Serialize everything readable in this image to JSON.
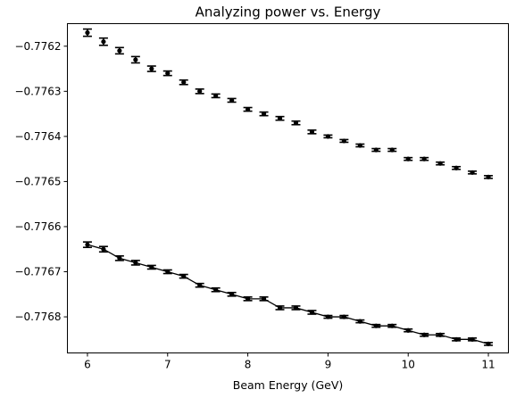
{
  "chart_data": {
    "type": "scatter",
    "title": "Analyzing power vs. Energy",
    "xlabel": "Beam Energy (GeV)",
    "ylabel": "",
    "xlim": [
      5.75,
      11.25
    ],
    "ylim": [
      -0.77688,
      -0.77615
    ],
    "xticks": [
      6,
      7,
      8,
      9,
      10,
      11
    ],
    "xtick_labels": [
      "6",
      "7",
      "8",
      "9",
      "10",
      "11"
    ],
    "yticks": [
      -0.7762,
      -0.7763,
      -0.7764,
      -0.7765,
      -0.7766,
      -0.7767,
      -0.7768
    ],
    "ytick_labels": [
      "−0.7762",
      "−0.7763",
      "−0.7764",
      "−0.7765",
      "−0.7766",
      "−0.7767",
      "−0.7768"
    ],
    "grid": false,
    "legend": "none",
    "marker_color": "#000000",
    "x": [
      6.0,
      6.2,
      6.4,
      6.6,
      6.8,
      7.0,
      7.2,
      7.4,
      7.6,
      7.8,
      8.0,
      8.2,
      8.4,
      8.6,
      8.8,
      9.0,
      9.2,
      9.4,
      9.6,
      9.8,
      10.0,
      10.2,
      10.4,
      10.6,
      10.8,
      11.0
    ],
    "series": [
      {
        "values": [
          -0.77617,
          -0.77619,
          -0.77621,
          -0.77623,
          -0.77625,
          -0.77626,
          -0.77628,
          -0.7763,
          -0.77631,
          -0.77632,
          -0.77634,
          -0.77635,
          -0.77636,
          -0.77637,
          -0.77639,
          -0.7764,
          -0.77641,
          -0.77642,
          -0.77643,
          -0.77643,
          -0.77645,
          -0.77645,
          -0.77646,
          -0.77647,
          -0.77648,
          -0.77649
        ],
        "errors": [
          8e-06,
          8e-06,
          7e-06,
          7e-06,
          6e-06,
          5e-06,
          5e-06,
          5e-06,
          4e-06,
          4e-06,
          4e-06,
          4e-06,
          4e-06,
          4e-06,
          4e-06,
          3e-06,
          3e-06,
          3e-06,
          3e-06,
          3e-06,
          3e-06,
          3e-06,
          3e-06,
          3e-06,
          3e-06,
          3e-06
        ],
        "connected": false
      },
      {
        "values": [
          -0.77664,
          -0.77665,
          -0.77667,
          -0.77668,
          -0.77669,
          -0.7767,
          -0.77671,
          -0.77673,
          -0.77674,
          -0.77675,
          -0.77676,
          -0.77676,
          -0.77678,
          -0.77678,
          -0.77679,
          -0.7768,
          -0.7768,
          -0.77681,
          -0.77682,
          -0.77682,
          -0.77683,
          -0.77684,
          -0.77684,
          -0.77685,
          -0.77685,
          -0.77686
        ],
        "errors": [
          6e-06,
          6e-06,
          5e-06,
          5e-06,
          4e-06,
          4e-06,
          4e-06,
          4e-06,
          4e-06,
          4e-06,
          4e-06,
          4e-06,
          4e-06,
          4e-06,
          4e-06,
          3e-06,
          3e-06,
          3e-06,
          3e-06,
          3e-06,
          3e-06,
          3e-06,
          3e-06,
          3e-06,
          3e-06,
          3e-06
        ],
        "connected": true
      }
    ]
  }
}
